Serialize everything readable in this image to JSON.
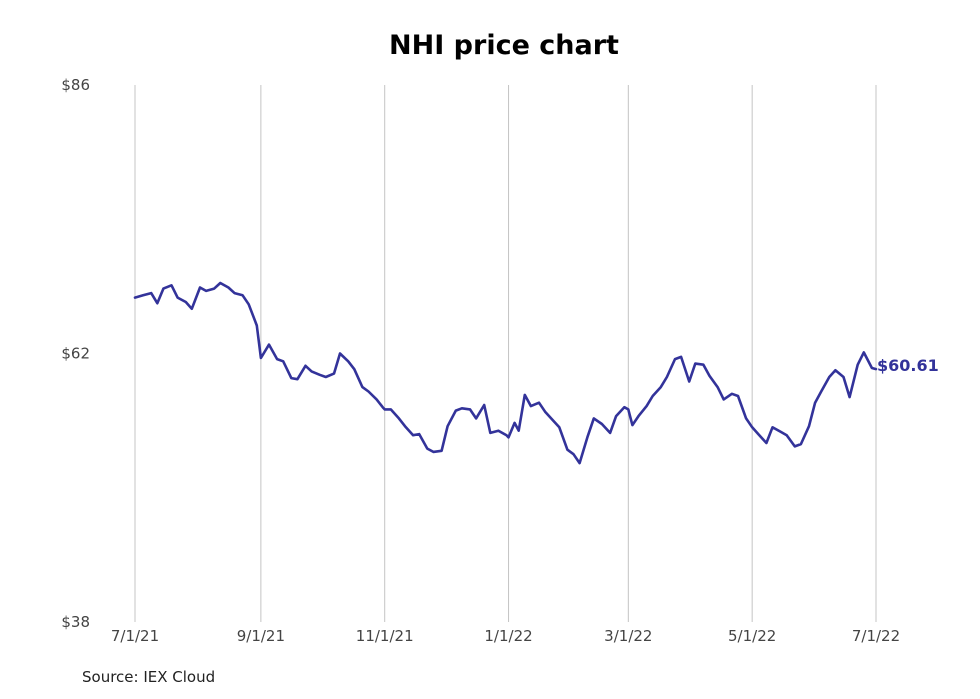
{
  "title": "NHI price chart",
  "source": "Source: IEX Cloud",
  "chart_data": {
    "type": "line",
    "title": "NHI price chart",
    "xlabel": "",
    "ylabel": "",
    "x_start": "2021-07-01",
    "x_end": "2022-07-01",
    "x_ticks": [
      {
        "label": "7/1/21",
        "date": "2021-07-01"
      },
      {
        "label": "9/1/21",
        "date": "2021-09-01"
      },
      {
        "label": "11/1/21",
        "date": "2021-11-01"
      },
      {
        "label": "1/1/22",
        "date": "2022-01-01"
      },
      {
        "label": "3/1/22",
        "date": "2022-03-01"
      },
      {
        "label": "5/1/22",
        "date": "2022-05-01"
      },
      {
        "label": "7/1/22",
        "date": "2022-07-01"
      }
    ],
    "y_ticks": [
      {
        "label": "$86",
        "value": 86
      },
      {
        "label": "$62",
        "value": 62
      },
      {
        "label": "$38",
        "value": 38
      }
    ],
    "ylim": [
      38,
      86
    ],
    "grid": "vertical",
    "color": "#33339a",
    "last_value_label": "$60.61",
    "series": [
      {
        "values": [
          [
            "2021-07-01",
            67.0
          ],
          [
            "2021-07-05",
            67.2
          ],
          [
            "2021-07-09",
            67.4
          ],
          [
            "2021-07-12",
            66.5
          ],
          [
            "2021-07-15",
            67.8
          ],
          [
            "2021-07-19",
            68.1
          ],
          [
            "2021-07-22",
            67.0
          ],
          [
            "2021-07-26",
            66.6
          ],
          [
            "2021-07-29",
            66.0
          ],
          [
            "2021-08-02",
            67.9
          ],
          [
            "2021-08-05",
            67.6
          ],
          [
            "2021-08-09",
            67.8
          ],
          [
            "2021-08-12",
            68.3
          ],
          [
            "2021-08-16",
            67.9
          ],
          [
            "2021-08-19",
            67.4
          ],
          [
            "2021-08-23",
            67.2
          ],
          [
            "2021-08-26",
            66.4
          ],
          [
            "2021-08-30",
            64.5
          ],
          [
            "2021-09-01",
            61.6
          ],
          [
            "2021-09-05",
            62.8
          ],
          [
            "2021-09-09",
            61.5
          ],
          [
            "2021-09-12",
            61.3
          ],
          [
            "2021-09-16",
            59.8
          ],
          [
            "2021-09-19",
            59.7
          ],
          [
            "2021-09-23",
            60.9
          ],
          [
            "2021-09-26",
            60.4
          ],
          [
            "2021-09-30",
            60.1
          ],
          [
            "2021-10-03",
            59.9
          ],
          [
            "2021-10-07",
            60.2
          ],
          [
            "2021-10-10",
            62.0
          ],
          [
            "2021-10-14",
            61.3
          ],
          [
            "2021-10-17",
            60.6
          ],
          [
            "2021-10-21",
            59.0
          ],
          [
            "2021-10-24",
            58.6
          ],
          [
            "2021-10-28",
            57.9
          ],
          [
            "2021-10-31",
            57.2
          ],
          [
            "2021-11-01",
            57.0
          ],
          [
            "2021-11-04",
            57.0
          ],
          [
            "2021-11-08",
            56.2
          ],
          [
            "2021-11-11",
            55.5
          ],
          [
            "2021-11-15",
            54.7
          ],
          [
            "2021-11-18",
            54.8
          ],
          [
            "2021-11-22",
            53.5
          ],
          [
            "2021-11-25",
            53.2
          ],
          [
            "2021-11-29",
            53.3
          ],
          [
            "2021-12-02",
            55.5
          ],
          [
            "2021-12-06",
            56.9
          ],
          [
            "2021-12-09",
            57.1
          ],
          [
            "2021-12-13",
            57.0
          ],
          [
            "2021-12-16",
            56.2
          ],
          [
            "2021-12-20",
            57.4
          ],
          [
            "2021-12-23",
            54.9
          ],
          [
            "2021-12-27",
            55.1
          ],
          [
            "2021-12-31",
            54.7
          ],
          [
            "2022-01-01",
            54.5
          ],
          [
            "2022-01-04",
            55.8
          ],
          [
            "2022-01-06",
            55.1
          ],
          [
            "2022-01-09",
            58.3
          ],
          [
            "2022-01-12",
            57.3
          ],
          [
            "2022-01-16",
            57.6
          ],
          [
            "2022-01-19",
            56.8
          ],
          [
            "2022-01-23",
            56.0
          ],
          [
            "2022-01-26",
            55.4
          ],
          [
            "2022-01-30",
            53.4
          ],
          [
            "2022-02-02",
            53.0
          ],
          [
            "2022-02-05",
            52.2
          ],
          [
            "2022-02-09",
            54.6
          ],
          [
            "2022-02-12",
            56.2
          ],
          [
            "2022-02-16",
            55.7
          ],
          [
            "2022-02-20",
            54.9
          ],
          [
            "2022-02-23",
            56.4
          ],
          [
            "2022-02-27",
            57.2
          ],
          [
            "2022-03-01",
            57.0
          ],
          [
            "2022-03-03",
            55.6
          ],
          [
            "2022-03-06",
            56.4
          ],
          [
            "2022-03-10",
            57.3
          ],
          [
            "2022-03-13",
            58.2
          ],
          [
            "2022-03-17",
            59.0
          ],
          [
            "2022-03-20",
            59.9
          ],
          [
            "2022-03-24",
            61.5
          ],
          [
            "2022-03-27",
            61.7
          ],
          [
            "2022-03-31",
            59.5
          ],
          [
            "2022-04-03",
            61.1
          ],
          [
            "2022-04-07",
            61.0
          ],
          [
            "2022-04-10",
            60.0
          ],
          [
            "2022-04-14",
            59.0
          ],
          [
            "2022-04-17",
            57.9
          ],
          [
            "2022-04-21",
            58.4
          ],
          [
            "2022-04-24",
            58.2
          ],
          [
            "2022-04-28",
            56.2
          ],
          [
            "2022-05-01",
            55.4
          ],
          [
            "2022-05-04",
            54.8
          ],
          [
            "2022-05-08",
            54.0
          ],
          [
            "2022-05-11",
            55.4
          ],
          [
            "2022-05-15",
            55.0
          ],
          [
            "2022-05-18",
            54.7
          ],
          [
            "2022-05-22",
            53.7
          ],
          [
            "2022-05-25",
            53.9
          ],
          [
            "2022-05-29",
            55.5
          ],
          [
            "2022-06-01",
            57.6
          ],
          [
            "2022-06-04",
            58.6
          ],
          [
            "2022-06-08",
            59.9
          ],
          [
            "2022-06-11",
            60.5
          ],
          [
            "2022-06-15",
            59.9
          ],
          [
            "2022-06-18",
            58.1
          ],
          [
            "2022-06-22",
            61.0
          ],
          [
            "2022-06-25",
            62.1
          ],
          [
            "2022-06-29",
            60.7
          ],
          [
            "2022-07-01",
            60.61
          ]
        ]
      }
    ]
  }
}
